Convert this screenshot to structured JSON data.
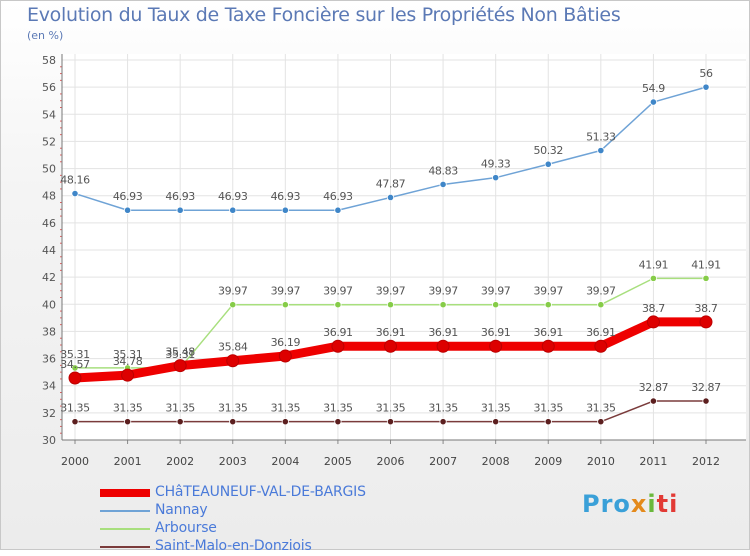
{
  "chart_data": {
    "type": "line",
    "title": "Evolution du Taux de Taxe Foncière sur les Propriétés Non Bâties",
    "ylabel": "(en %)",
    "xlabel": "",
    "categories": [
      "2000",
      "2001",
      "2002",
      "2003",
      "2004",
      "2005",
      "2006",
      "2007",
      "2008",
      "2009",
      "2010",
      "2011",
      "2012"
    ],
    "ylim": [
      30,
      58
    ],
    "yticks": [
      30,
      32,
      34,
      36,
      38,
      40,
      42,
      44,
      46,
      48,
      50,
      52,
      54,
      56,
      58
    ],
    "grid": true,
    "legend_position": "bottom-left",
    "series": [
      {
        "name": "CHâTEAUNEUF-VAL-DE-BARGIS",
        "color": "#ee0000",
        "marker": "#dd0000",
        "width": "thick",
        "values": [
          34.57,
          34.78,
          35.48,
          35.84,
          36.19,
          36.91,
          36.91,
          36.91,
          36.91,
          36.91,
          36.91,
          38.7,
          38.7
        ],
        "labels": [
          "34.57",
          "34.78",
          "35.48",
          "35.84",
          "36.19",
          "36.91",
          "36.91",
          "36.91",
          "36.91",
          "36.91",
          "36.91",
          "38.7",
          "38.7"
        ]
      },
      {
        "name": "Nannay",
        "color": "#6fa3d6",
        "marker": "#3f86c8",
        "width": "thin",
        "values": [
          48.16,
          46.93,
          46.93,
          46.93,
          46.93,
          46.93,
          47.87,
          48.83,
          49.33,
          50.32,
          51.33,
          54.9,
          56
        ],
        "labels": [
          "48.16",
          "46.93",
          "46.93",
          "46.93",
          "46.93",
          "46.93",
          "47.87",
          "48.83",
          "49.33",
          "50.32",
          "51.33",
          "54.9",
          "56"
        ]
      },
      {
        "name": "Arbourse",
        "color": "#a8df7e",
        "marker": "#86cc48",
        "width": "thin",
        "values": [
          35.31,
          35.31,
          35.31,
          39.97,
          39.97,
          39.97,
          39.97,
          39.97,
          39.97,
          39.97,
          39.97,
          41.91,
          41.91
        ],
        "labels": [
          "35.31",
          "35.31",
          "35.31",
          "39.97",
          "39.97",
          "39.97",
          "39.97",
          "39.97",
          "39.97",
          "39.97",
          "39.97",
          "41.91",
          "41.91"
        ]
      },
      {
        "name": "Saint-Malo-en-Donziois",
        "color": "#7a3b3b",
        "marker": "#5c1f1f",
        "width": "thin",
        "values": [
          31.35,
          31.35,
          31.35,
          31.35,
          31.35,
          31.35,
          31.35,
          31.35,
          31.35,
          31.35,
          31.35,
          32.87,
          32.87
        ],
        "labels": [
          "31.35",
          "31.35",
          "31.35",
          "31.35",
          "31.35",
          "31.35",
          "31.35",
          "31.35",
          "31.35",
          "31.35",
          "31.35",
          "32.87",
          "32.87"
        ]
      }
    ]
  },
  "logo": {
    "part1": "Pro",
    "part2": "x",
    "part3": "i",
    "part4": "ti"
  }
}
